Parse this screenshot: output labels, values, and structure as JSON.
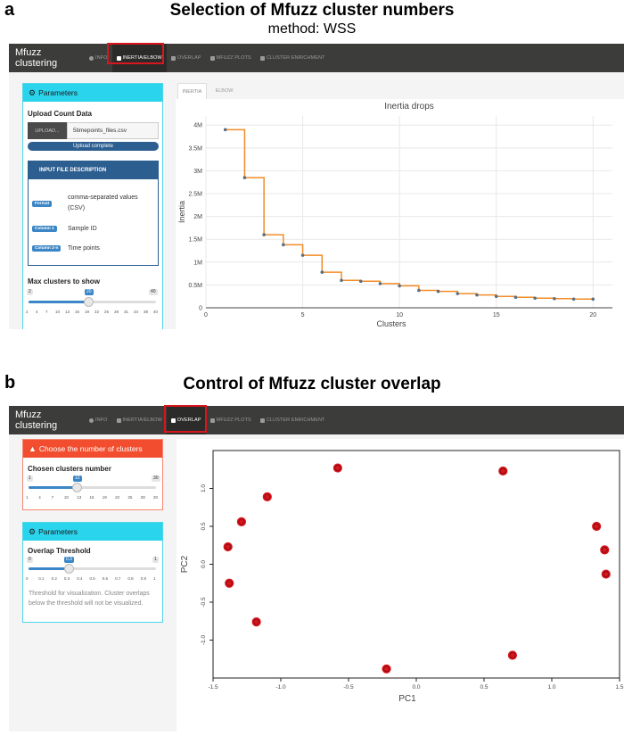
{
  "panel_a": {
    "letter": "a",
    "title": "Selection of Mfuzz cluster numbers",
    "subtitle": "method: WSS",
    "navbar": {
      "brand": "Mfuzz clustering",
      "tabs": [
        "INFO",
        "INERTIA/ELBOW",
        "OVERLAP",
        "MFUZZ PLOTS",
        "CLUSTER ENRICHMENT"
      ],
      "active_tab": "INERTIA/ELBOW"
    },
    "sidebar": {
      "header": "Parameters",
      "upload_label": "Upload Count Data",
      "upload_button": "UPLOAD...",
      "file_name": "5timepoints_files.csv",
      "upload_status": "Upload complete",
      "description_header": "INPUT FILE DESCRIPTION",
      "description_rows": [
        {
          "tag": "Format",
          "text_line1": "comma-separated values",
          "text_line2": "(CSV)"
        },
        {
          "tag": "Column 1",
          "text_line1": "Sample ID",
          "text_line2": ""
        },
        {
          "tag": "Column 2-n",
          "text_line1": "Time points",
          "text_line2": ""
        }
      ],
      "max_clusters_label": "Max clusters to show",
      "slider": {
        "min": "2",
        "max": "40",
        "value": "20",
        "ticks": [
          "2",
          "4",
          "7",
          "10",
          "13",
          "16",
          "19",
          "22",
          "25",
          "28",
          "31",
          "34",
          "38",
          "40"
        ]
      }
    },
    "tabs": [
      "INERTIA",
      "ELBOW"
    ],
    "active_plot_tab": "INERTIA"
  },
  "panel_b": {
    "letter": "b",
    "title": "Control of Mfuzz cluster overlap",
    "navbar": {
      "brand": "Mfuzz clustering",
      "tabs": [
        "INFO",
        "INERTIA/ELBOW",
        "OVERLAP",
        "MFUZZ PLOTS",
        "CLUSTER ENRICHMENT"
      ],
      "active_tab": "OVERLAP"
    },
    "cluster_card": {
      "header": "Choose the number of clusters",
      "label": "Chosen clusters number",
      "slider": {
        "min": "1",
        "max": "30",
        "value": "12",
        "ticks": [
          "1",
          "4",
          "7",
          "10",
          "13",
          "16",
          "19",
          "22",
          "25",
          "28",
          "30"
        ]
      }
    },
    "params_card": {
      "header": "Parameters",
      "label": "Overlap Threshold",
      "slider": {
        "min": "0",
        "max": "1",
        "value": "0.3",
        "ticks": [
          "0",
          "0.1",
          "0.2",
          "0.3",
          "0.4",
          "0.5",
          "0.6",
          "0.7",
          "0.8",
          "0.9",
          "1"
        ]
      },
      "help": "Threshold for visualization. Cluster overlaps below the threshold will not be visualized."
    }
  },
  "colors": {
    "navbar": "#3c3c3a",
    "cyan": "#29d4ec",
    "red_head": "#f24d2e",
    "line": "#f28c28",
    "point": "#d9151d",
    "highlight": "#d9151d"
  },
  "chart_data": [
    {
      "type": "line",
      "title": "Inertia drops",
      "xlabel": "Clusters",
      "ylabel": "Inertia",
      "x": [
        1,
        2,
        3,
        4,
        5,
        6,
        7,
        8,
        9,
        10,
        11,
        12,
        13,
        14,
        15,
        16,
        17,
        18,
        19,
        20
      ],
      "y": [
        3.9,
        2.85,
        1.6,
        1.38,
        1.15,
        0.78,
        0.6,
        0.58,
        0.53,
        0.48,
        0.38,
        0.36,
        0.31,
        0.28,
        0.25,
        0.23,
        0.21,
        0.2,
        0.19,
        0.19
      ],
      "xlim": [
        0,
        21
      ],
      "ylim": [
        0,
        4.2
      ],
      "xticks": [
        "0",
        "5",
        "10",
        "15",
        "20"
      ],
      "yticks": [
        "0",
        "0.5M",
        "1M",
        "1.5M",
        "2M",
        "2.5M",
        "3M",
        "3.5M",
        "4M"
      ],
      "step": true,
      "grid": true
    },
    {
      "type": "scatter",
      "xlabel": "PC1",
      "ylabel": "PC2",
      "x": [
        -0.58,
        0.64,
        -1.1,
        -1.29,
        -1.39,
        1.33,
        1.39,
        -1.38,
        1.4,
        -1.18,
        0.71,
        -0.22
      ],
      "y": [
        1.27,
        1.23,
        0.89,
        0.56,
        0.23,
        0.5,
        0.19,
        -0.25,
        -0.13,
        -0.76,
        -1.2,
        -1.38
      ],
      "xlim": [
        -1.5,
        1.5
      ],
      "ylim": [
        -1.5,
        1.5
      ],
      "xticks": [
        "-1.5",
        "-1.0",
        "-0.5",
        "0.0",
        "0.5",
        "1.0",
        "1.5"
      ],
      "yticks": [
        "-1.0",
        "-0.5",
        "0.0",
        "0.5",
        "1.0"
      ],
      "grid": false
    }
  ]
}
